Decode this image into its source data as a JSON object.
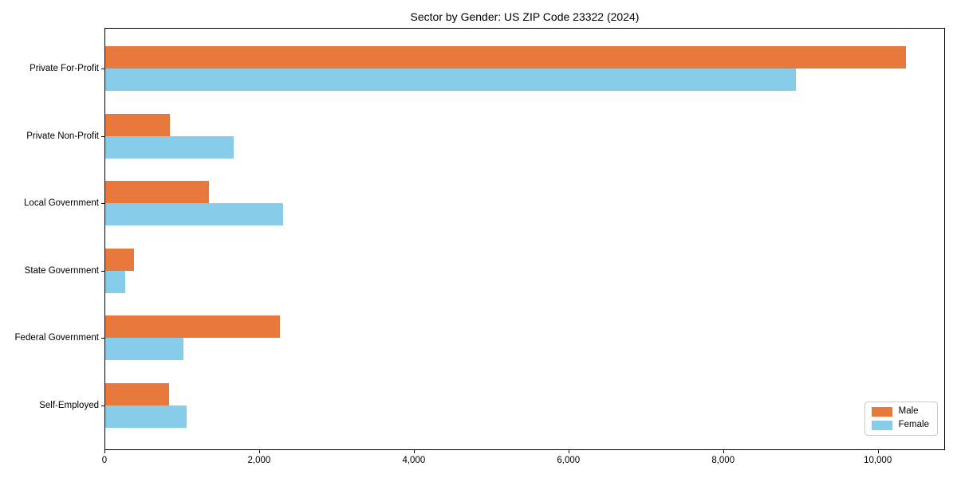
{
  "figure": {
    "background": "#ffffff",
    "axes_border_color": "#000000",
    "text_color": "#000000"
  },
  "chart_data": {
    "type": "bar",
    "orientation": "horizontal",
    "title": "Sector by Gender: US ZIP Code 23322 (2024)",
    "categories": [
      "Private For-Profit",
      "Private Non-Profit",
      "Local Government",
      "State Government",
      "Federal Government",
      "Self-Employed"
    ],
    "categories_order": "top-to-bottom",
    "series": [
      {
        "name": "Male",
        "color": "#e8793d",
        "values": [
          10350,
          840,
          1340,
          370,
          2260,
          820
        ]
      },
      {
        "name": "Female",
        "color": "#87cdea",
        "values": [
          8930,
          1660,
          2300,
          260,
          1010,
          1050
        ]
      }
    ],
    "xlabel": "",
    "ylabel": "",
    "xlim": [
      0,
      10870
    ],
    "x_ticks": {
      "values": [
        0,
        2000,
        4000,
        6000,
        8000,
        10000
      ],
      "labels": [
        "0",
        "2,000",
        "4,000",
        "6,000",
        "8,000",
        "10,000"
      ]
    },
    "grid": false,
    "legend": {
      "position": "lower-right",
      "entries": [
        "Male",
        "Female"
      ]
    }
  }
}
